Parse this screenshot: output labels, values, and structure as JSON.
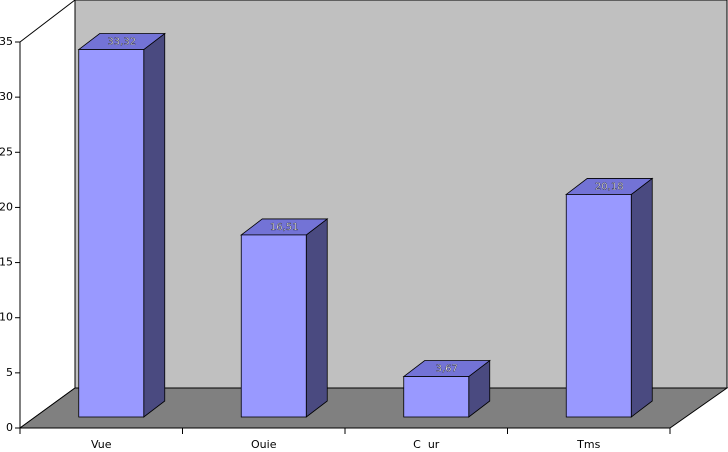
{
  "chart_data": {
    "type": "bar3d",
    "categories": [
      "Vue",
      "Ouie",
      "C  ur",
      "Tms"
    ],
    "values": [
      33.32,
      16.51,
      3.67,
      20.18
    ],
    "value_labels": [
      "33,32",
      "16,51",
      "3,67",
      "20,18"
    ],
    "color": "#9999ff",
    "ylim": [
      0,
      35
    ],
    "yticks": [
      0,
      5,
      10,
      15,
      20,
      25,
      30,
      35
    ]
  }
}
